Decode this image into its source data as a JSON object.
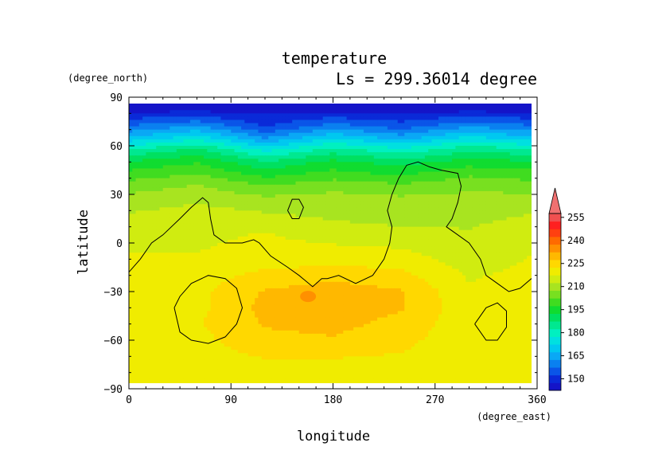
{
  "chart_data": {
    "type": "heatmap",
    "title": "temperature",
    "subtitle": "Ls = 299.36014 degree",
    "xlabel": "longitude",
    "ylabel": "latitude",
    "x_unit": "(degree_east)",
    "y_unit": "(degree_north)",
    "xlim": [
      0,
      360
    ],
    "ylim": [
      -90,
      90
    ],
    "x_ticks": [
      "0",
      "90",
      "180",
      "270",
      "360"
    ],
    "y_ticks": [
      "90",
      "60",
      "30",
      "0",
      "−30",
      "−60",
      "−90"
    ],
    "x_tick_values": [
      0,
      90,
      180,
      270,
      360
    ],
    "y_tick_values": [
      90,
      60,
      30,
      0,
      -30,
      -60,
      -90
    ],
    "colorbar": {
      "levels": [
        255,
        240,
        225,
        210,
        195,
        180,
        165,
        150
      ],
      "labels": [
        "255",
        "240",
        "225",
        "210",
        "195",
        "180",
        "165",
        "150"
      ],
      "bands": [
        {
          "from": 142.5,
          "to": 147.5,
          "color": "#1414c8"
        },
        {
          "from": 147.5,
          "to": 152.5,
          "color": "#0a2ad8"
        },
        {
          "from": 152.5,
          "to": 157.5,
          "color": "#0a55e8"
        },
        {
          "from": 157.5,
          "to": 162.5,
          "color": "#0a80f0"
        },
        {
          "from": 162.5,
          "to": 167.5,
          "color": "#0aa8f5"
        },
        {
          "from": 167.5,
          "to": 172.5,
          "color": "#00c8f0"
        },
        {
          "from": 172.5,
          "to": 177.5,
          "color": "#00e0e0"
        },
        {
          "from": 177.5,
          "to": 182.5,
          "color": "#00f0c0"
        },
        {
          "from": 182.5,
          "to": 187.5,
          "color": "#00e890"
        },
        {
          "from": 187.5,
          "to": 192.5,
          "color": "#00e060"
        },
        {
          "from": 192.5,
          "to": 197.5,
          "color": "#10dc30"
        },
        {
          "from": 197.5,
          "to": 202.5,
          "color": "#40dc20"
        },
        {
          "from": 202.5,
          "to": 207.5,
          "color": "#78e020"
        },
        {
          "from": 207.5,
          "to": 212.5,
          "color": "#a8e420"
        },
        {
          "from": 212.5,
          "to": 217.5,
          "color": "#d0ec10"
        },
        {
          "from": 217.5,
          "to": 222.5,
          "color": "#f0ec00"
        },
        {
          "from": 222.5,
          "to": 227.5,
          "color": "#ffd800"
        },
        {
          "from": 227.5,
          "to": 232.5,
          "color": "#ffb800"
        },
        {
          "from": 232.5,
          "to": 237.5,
          "color": "#ff9000"
        },
        {
          "from": 237.5,
          "to": 242.5,
          "color": "#ff6a00"
        },
        {
          "from": 242.5,
          "to": 247.5,
          "color": "#ff4010"
        },
        {
          "from": 247.5,
          "to": 252.5,
          "color": "#ff2020"
        },
        {
          "from": 252.5,
          "to": 257.5,
          "color": "#f05050"
        }
      ],
      "overflow_color": "#f07070"
    },
    "field": {
      "lat_rows": [
        82,
        72,
        65,
        58,
        50,
        42,
        35,
        28,
        20,
        12,
        5,
        -2,
        -10,
        -20,
        -30,
        -40,
        -50,
        -60,
        -70,
        -78,
        -84
      ],
      "lon_cols": [
        0,
        60,
        120,
        180,
        240,
        300,
        360
      ],
      "temps": [
        [
          146,
          146,
          146,
          146,
          146,
          146,
          146
        ],
        [
          158,
          163,
          152,
          160,
          155,
          162,
          158
        ],
        [
          168,
          175,
          162,
          172,
          165,
          174,
          168
        ],
        [
          182,
          188,
          175,
          184,
          178,
          186,
          182
        ],
        [
          193,
          197,
          188,
          194,
          190,
          195,
          193
        ],
        [
          200,
          203,
          196,
          200,
          197,
          202,
          200
        ],
        [
          205,
          208,
          203,
          206,
          204,
          206,
          205
        ],
        [
          209,
          211,
          208,
          209,
          208,
          209,
          209
        ],
        [
          212,
          214,
          212,
          211,
          210,
          211,
          212
        ],
        [
          214,
          216,
          215,
          213,
          212,
          212,
          214
        ],
        [
          216,
          216,
          218,
          215,
          214,
          213,
          216
        ],
        [
          217,
          217,
          219,
          218,
          217,
          214,
          217
        ],
        [
          218,
          218,
          220,
          220,
          220,
          215,
          218
        ],
        [
          219,
          220,
          224,
          226,
          224,
          217,
          219
        ],
        [
          219,
          221,
          228,
          230,
          228,
          218,
          219
        ],
        [
          220,
          221,
          229,
          230,
          228,
          219,
          220
        ],
        [
          220,
          222,
          228,
          229,
          226,
          219,
          220
        ],
        [
          220,
          221,
          226,
          227,
          224,
          219,
          220
        ],
        [
          219,
          220,
          223,
          223,
          222,
          219,
          219
        ],
        [
          219,
          219,
          220,
          220,
          219,
          219,
          219
        ],
        [
          218,
          218,
          218,
          218,
          218,
          218,
          218
        ]
      ]
    },
    "warm_spot": {
      "lon": 158,
      "lat": -33,
      "temp": 236
    },
    "topography_contours": [
      [
        [
          0,
          -18
        ],
        [
          10,
          -10
        ],
        [
          20,
          0
        ],
        [
          30,
          5
        ],
        [
          45,
          15
        ],
        [
          55,
          22
        ],
        [
          65,
          28
        ],
        [
          70,
          25
        ],
        [
          72,
          15
        ],
        [
          75,
          5
        ],
        [
          85,
          0
        ],
        [
          100,
          0
        ],
        [
          110,
          2
        ],
        [
          115,
          0
        ],
        [
          125,
          -8
        ],
        [
          140,
          -15
        ],
        [
          150,
          -20
        ],
        [
          162,
          -27
        ],
        [
          170,
          -22
        ],
        [
          175,
          -22
        ],
        [
          185,
          -20
        ],
        [
          200,
          -25
        ],
        [
          215,
          -20
        ],
        [
          225,
          -10
        ],
        [
          230,
          0
        ],
        [
          232,
          10
        ],
        [
          228,
          20
        ],
        [
          232,
          30
        ],
        [
          238,
          40
        ],
        [
          245,
          48
        ],
        [
          255,
          50
        ],
        [
          265,
          47
        ],
        [
          275,
          45
        ],
        [
          290,
          43
        ],
        [
          293,
          35
        ],
        [
          290,
          25
        ],
        [
          285,
          15
        ],
        [
          280,
          10
        ],
        [
          290,
          5
        ],
        [
          300,
          0
        ],
        [
          310,
          -10
        ],
        [
          315,
          -20
        ],
        [
          325,
          -25
        ],
        [
          335,
          -30
        ],
        [
          345,
          -28
        ],
        [
          355,
          -22
        ],
        [
          360,
          -20
        ]
      ],
      [
        [
          40,
          -40
        ],
        [
          45,
          -55
        ],
        [
          55,
          -60
        ],
        [
          70,
          -62
        ],
        [
          85,
          -58
        ],
        [
          95,
          -50
        ],
        [
          100,
          -40
        ],
        [
          95,
          -28
        ],
        [
          85,
          -22
        ],
        [
          70,
          -20
        ],
        [
          55,
          -25
        ],
        [
          45,
          -33
        ],
        [
          40,
          -40
        ]
      ],
      [
        [
          140,
          20
        ],
        [
          144,
          27
        ],
        [
          150,
          27
        ],
        [
          154,
          22
        ],
        [
          150,
          15
        ],
        [
          144,
          15
        ],
        [
          140,
          20
        ]
      ],
      [
        [
          305,
          -50
        ],
        [
          315,
          -60
        ],
        [
          325,
          -60
        ],
        [
          333,
          -52
        ],
        [
          333,
          -42
        ],
        [
          325,
          -37
        ],
        [
          315,
          -40
        ],
        [
          305,
          -50
        ]
      ]
    ]
  }
}
